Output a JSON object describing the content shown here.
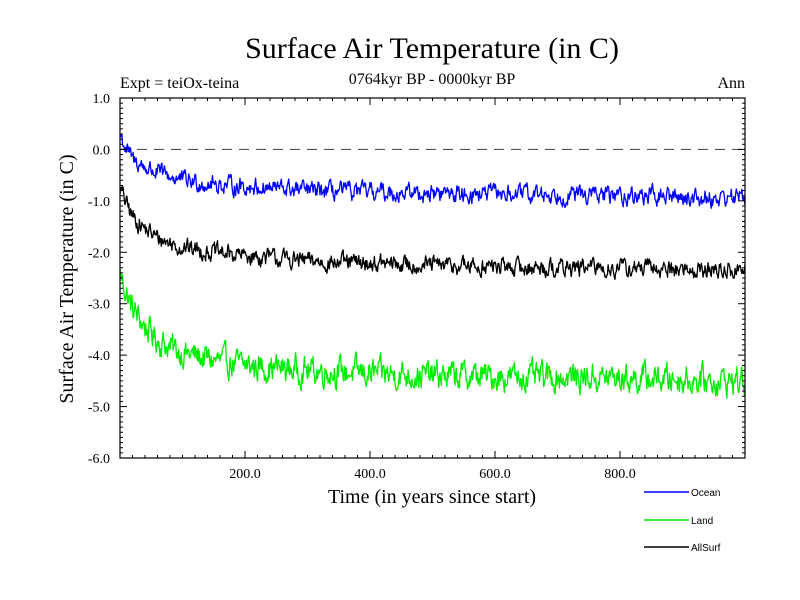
{
  "chart_data": {
    "type": "line",
    "title": "Surface Air Temperature (in C)",
    "subtitle": "0764kyr BP - 0000kyr BP",
    "experiment_label": "Expt = teiOx-teina",
    "period_label": "Ann",
    "xlabel": "Time (in years since start)",
    "ylabel": "Surface Air Temperature (in C)",
    "xlim": [
      0,
      1000
    ],
    "ylim": [
      -6.0,
      1.0
    ],
    "x_ticks": [
      200,
      400,
      600,
      800
    ],
    "x_tick_labels": [
      "200.0",
      "400.0",
      "600.0",
      "800.0"
    ],
    "y_ticks": [
      1.0,
      0.0,
      -1.0,
      -2.0,
      -3.0,
      -4.0,
      -5.0,
      -6.0
    ],
    "y_tick_labels": [
      "1.0",
      "0.0",
      "-1.0",
      "-2.0",
      "-3.0",
      "-4.0",
      "-5.0",
      "-6.0"
    ],
    "zero_reference_line": 0.0,
    "legend_position": "bottom-right, below plot",
    "series": [
      {
        "name": "Ocean",
        "color": "#0000ff",
        "x": [
          0,
          10,
          20,
          40,
          60,
          80,
          100,
          150,
          200,
          250,
          300,
          350,
          400,
          450,
          500,
          550,
          600,
          650,
          700,
          750,
          800,
          850,
          900,
          950,
          1000
        ],
        "values": [
          0.3,
          0.0,
          -0.2,
          -0.35,
          -0.45,
          -0.52,
          -0.6,
          -0.68,
          -0.72,
          -0.75,
          -0.8,
          -0.82,
          -0.83,
          -0.84,
          -0.85,
          -0.86,
          -0.86,
          -0.87,
          -0.88,
          -0.88,
          -0.9,
          -0.9,
          -0.92,
          -0.95,
          -0.9
        ],
        "noise_amplitude": 0.14
      },
      {
        "name": "Land",
        "color": "#00ee00",
        "x": [
          0,
          10,
          20,
          40,
          60,
          80,
          100,
          150,
          200,
          250,
          300,
          350,
          400,
          450,
          500,
          550,
          600,
          650,
          700,
          750,
          800,
          850,
          900,
          950,
          1000
        ],
        "values": [
          -2.4,
          -2.8,
          -3.1,
          -3.45,
          -3.7,
          -3.85,
          -3.95,
          -4.1,
          -4.2,
          -4.25,
          -4.3,
          -4.32,
          -4.35,
          -4.38,
          -4.4,
          -4.4,
          -4.42,
          -4.42,
          -4.43,
          -4.43,
          -4.45,
          -4.45,
          -4.46,
          -4.5,
          -4.5
        ],
        "noise_amplitude": 0.22
      },
      {
        "name": "AllSurf",
        "color": "#000000",
        "x": [
          0,
          10,
          20,
          40,
          60,
          80,
          100,
          150,
          200,
          250,
          300,
          350,
          400,
          450,
          500,
          550,
          600,
          650,
          700,
          750,
          800,
          850,
          900,
          950,
          1000
        ],
        "values": [
          -0.75,
          -1.05,
          -1.3,
          -1.55,
          -1.72,
          -1.82,
          -1.9,
          -2.0,
          -2.07,
          -2.12,
          -2.17,
          -2.2,
          -2.22,
          -2.24,
          -2.25,
          -2.27,
          -2.28,
          -2.3,
          -2.3,
          -2.3,
          -2.31,
          -2.32,
          -2.33,
          -2.35,
          -2.35
        ],
        "noise_amplitude": 0.14
      }
    ]
  }
}
